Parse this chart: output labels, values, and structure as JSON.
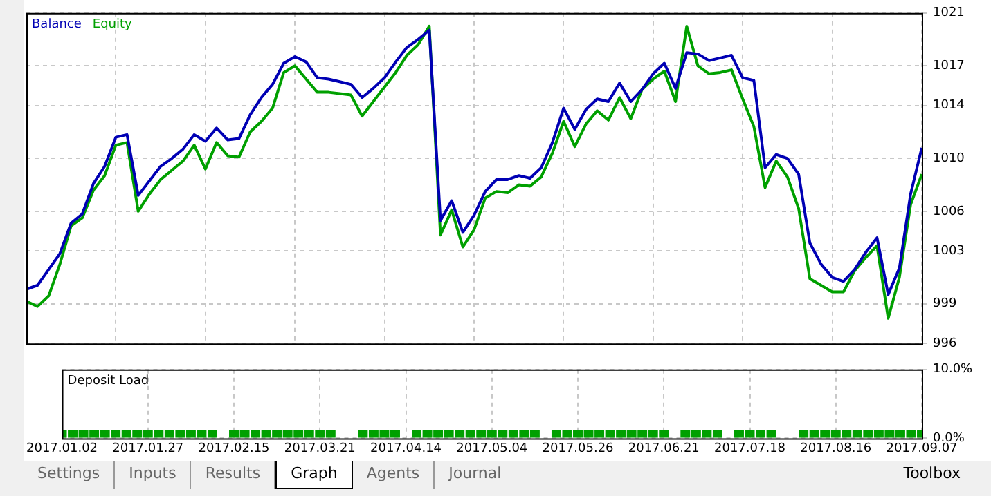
{
  "chart_data": [
    {
      "type": "line",
      "legend": "top left",
      "grid": true,
      "tick_labels": "y",
      "categories": [
        null,
        null,
        null,
        null,
        null,
        null,
        null,
        null,
        null,
        null,
        null,
        null,
        null,
        null,
        null,
        null,
        null,
        null,
        null,
        null,
        null,
        null,
        null,
        null,
        null,
        null,
        null,
        null,
        null,
        null,
        null,
        null,
        null,
        null,
        null,
        null,
        null,
        null,
        null,
        null,
        null,
        null,
        null,
        null,
        null,
        null,
        null,
        null,
        null,
        null,
        null,
        null,
        null,
        null,
        null,
        null,
        null,
        null,
        null,
        null,
        null,
        null,
        null,
        null,
        null,
        null,
        null,
        null,
        null,
        null,
        null,
        null,
        null,
        null,
        null,
        null,
        null,
        null,
        null,
        null,
        null
      ],
      "ylim": [
        996,
        1021
      ],
      "yticks": [
        996,
        999,
        1003,
        1006,
        1010,
        1014,
        1017,
        1021
      ],
      "series": [
        {
          "name": "Balance",
          "color": "#0000b4",
          "values": [
            1000.1,
            1000.4,
            1001.6,
            1002.8,
            1005.1,
            1005.8,
            1008.1,
            1009.4,
            1011.6,
            1011.8,
            1007.2,
            1008.3,
            1009.4,
            1010.0,
            1010.7,
            1011.8,
            1011.3,
            1012.3,
            1011.4,
            1011.5,
            1013.3,
            1014.6,
            1015.6,
            1017.2,
            1017.7,
            1017.3,
            1016.1,
            1016.0,
            1015.8,
            1015.6,
            1014.6,
            1015.3,
            1016.1,
            1017.3,
            1018.4,
            1019.0,
            1019.7,
            1005.3,
            1006.8,
            1004.4,
            1005.7,
            1007.5,
            1008.4,
            1008.4,
            1008.7,
            1008.5,
            1009.3,
            1011.2,
            1013.8,
            1012.2,
            1013.7,
            1014.5,
            1014.3,
            1015.7,
            1014.3,
            1015.2,
            1016.4,
            1017.2,
            1015.3,
            1018.0,
            1017.9,
            1017.4,
            1017.6,
            1017.8,
            1016.1,
            1015.9,
            1009.3,
            1010.3,
            1010.0,
            1008.8,
            1003.6,
            1002.0,
            1001.0,
            1000.7,
            1001.6,
            1002.9,
            1004.0,
            999.7,
            1001.7,
            1007.3,
            1010.8
          ]
        },
        {
          "name": "Equity",
          "color": "#00a000",
          "values": [
            999.2,
            998.8,
            999.6,
            1002.0,
            1004.9,
            1005.5,
            1007.6,
            1008.7,
            1011.0,
            1011.2,
            1006.0,
            1007.3,
            1008.4,
            1009.1,
            1009.8,
            1011.0,
            1009.2,
            1011.2,
            1010.2,
            1010.1,
            1012.0,
            1012.8,
            1013.8,
            1016.5,
            1017.0,
            1016.0,
            1015.0,
            1015.0,
            1014.9,
            1014.8,
            1013.2,
            1014.3,
            1015.4,
            1016.5,
            1017.8,
            1018.6,
            1020.0,
            1004.2,
            1006.1,
            1003.3,
            1004.6,
            1007.0,
            1007.5,
            1007.4,
            1008.0,
            1007.9,
            1008.6,
            1010.4,
            1012.8,
            1010.9,
            1012.6,
            1013.6,
            1012.9,
            1014.6,
            1013.0,
            1015.2,
            1016.0,
            1016.6,
            1014.3,
            1020.0,
            1017.0,
            1016.4,
            1016.5,
            1016.7,
            1014.5,
            1012.4,
            1007.8,
            1009.8,
            1008.6,
            1006.2,
            1000.9,
            1000.4,
            999.9,
            999.9,
            1001.5,
            1002.5,
            1003.4,
            997.9,
            1001.0,
            1006.5,
            1008.8
          ]
        }
      ]
    },
    {
      "type": "bar",
      "title": "Deposit Load",
      "grid": true,
      "categories": [
        "2017.01.02",
        null,
        null,
        null,
        null,
        null,
        null,
        null,
        "2017.01.27",
        null,
        null,
        null,
        null,
        null,
        null,
        null,
        "2017.02.15",
        null,
        null,
        null,
        null,
        null,
        null,
        null,
        "2017.03.21",
        null,
        null,
        null,
        null,
        null,
        null,
        null,
        "2017.04.14",
        null,
        null,
        null,
        null,
        null,
        null,
        null,
        "2017.05.04",
        null,
        null,
        null,
        null,
        null,
        null,
        null,
        "2017.05.26",
        null,
        null,
        null,
        null,
        null,
        null,
        null,
        "2017.06.21",
        null,
        null,
        null,
        null,
        null,
        null,
        null,
        "2017.07.18",
        null,
        null,
        null,
        null,
        null,
        null,
        null,
        "2017.08.16",
        null,
        null,
        null,
        null,
        null,
        null,
        null,
        "2017.09.07"
      ],
      "ylim": [
        0,
        10
      ],
      "yticks": [
        {
          "value": 0,
          "label": "0.0%"
        },
        {
          "value": 10,
          "label": "10.0%"
        }
      ],
      "values": [
        1.2,
        1.2,
        1.2,
        1.2,
        1.2,
        1.2,
        1.2,
        1.2,
        1.2,
        1.2,
        1.2,
        1.2,
        1.2,
        1.2,
        1.2,
        null,
        1.2,
        1.2,
        1.2,
        1.2,
        1.2,
        1.2,
        1.2,
        1.2,
        1.2,
        1.2,
        null,
        null,
        1.2,
        1.2,
        1.2,
        1.2,
        null,
        1.2,
        1.2,
        1.2,
        1.2,
        1.2,
        1.2,
        1.2,
        1.2,
        1.2,
        1.2,
        1.2,
        1.2,
        null,
        1.2,
        1.2,
        1.2,
        1.2,
        1.2,
        1.2,
        1.2,
        1.2,
        1.2,
        1.2,
        1.2,
        null,
        1.2,
        1.2,
        1.2,
        1.2,
        null,
        1.2,
        1.2,
        1.2,
        1.2,
        null,
        null,
        1.2,
        1.2,
        1.2,
        1.2,
        1.2,
        1.2,
        1.2,
        1.2,
        1.2,
        1.2,
        1.2,
        1.2
      ],
      "color": "#00a000",
      "annotations": [
        "Settings",
        "Inputs",
        "Results",
        "Graph",
        "Agents",
        "Journal",
        "Toolbox"
      ]
    }
  ]
}
